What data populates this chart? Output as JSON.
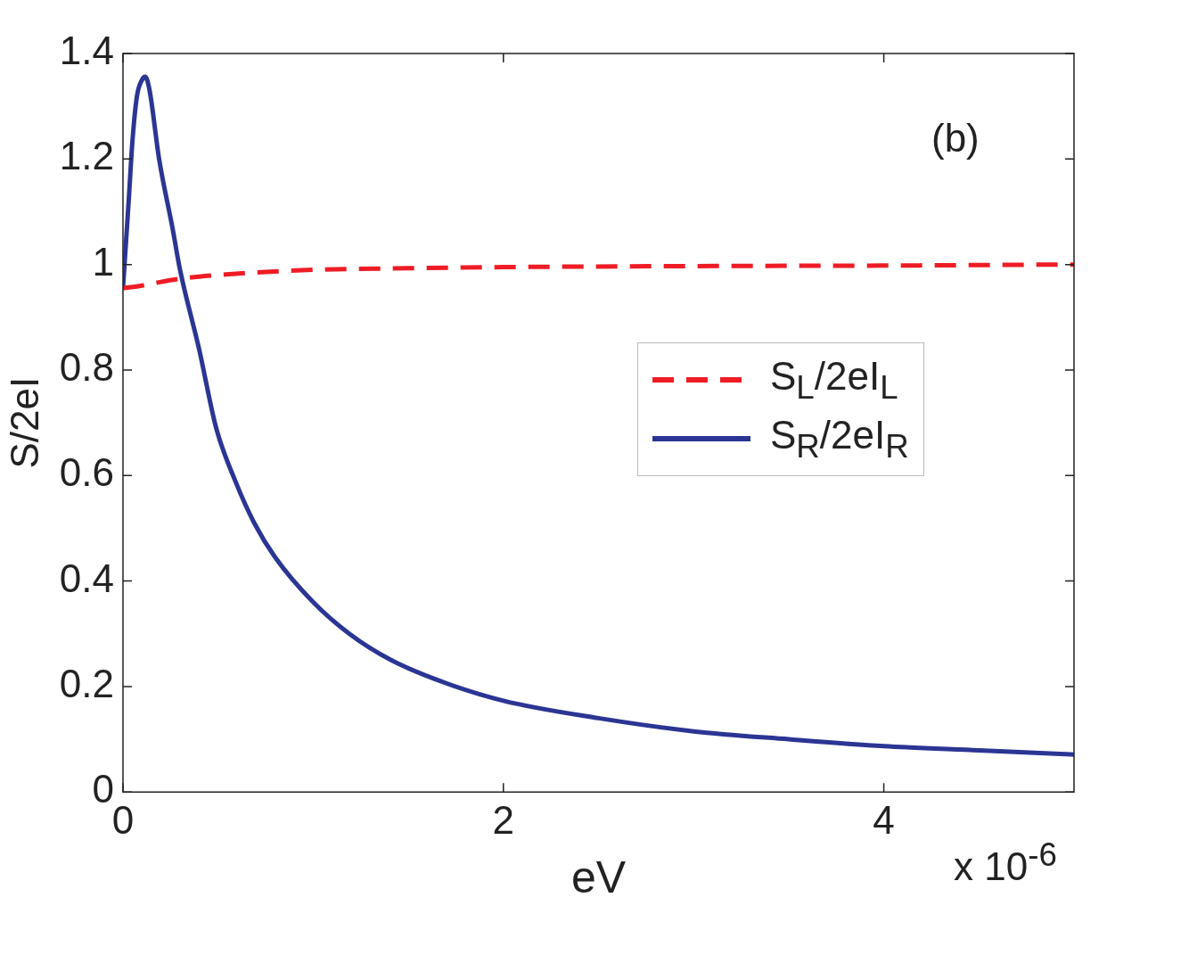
{
  "chart_data": {
    "type": "line",
    "xlabel": "eV",
    "ylabel": "S/2eI",
    "annotations": [
      "(b)",
      "x 10$^{-6}$"
    ],
    "xlim": [
      0,
      5
    ],
    "xticks": [
      0,
      2,
      4
    ],
    "ylim": [
      0,
      1.4
    ],
    "yticks": [
      0,
      0.2,
      0.4,
      0.6,
      0.8,
      1,
      1.2,
      1.4
    ],
    "grid": false,
    "legend": "right",
    "marker": "none",
    "series": [
      {
        "name": "S$_{L}$/2eI$_{L}$",
        "color": "#ee1c25",
        "line_style": "dashed",
        "x": [
          0,
          0.1,
          0.2,
          0.3,
          0.5,
          0.75,
          1,
          1.5,
          2,
          3,
          4,
          5
        ],
        "values": [
          0.955,
          0.96,
          0.967,
          0.973,
          0.98,
          0.986,
          0.99,
          0.993,
          0.995,
          0.997,
          0.998,
          1.0
        ]
      },
      {
        "name": "S$_{R}$/2eI$_{R}$",
        "color": "#2b3593",
        "line_style": "solid",
        "x": [
          0,
          0.03,
          0.05,
          0.073,
          0.1,
          0.117,
          0.14,
          0.19,
          0.26,
          0.3,
          0.4,
          0.49,
          0.59,
          0.69,
          0.8,
          1,
          1.19,
          1.41,
          1.67,
          2,
          2.5,
          3,
          3.5,
          4,
          4.5,
          5
        ],
        "values": [
          0.955,
          1.12,
          1.235,
          1.318,
          1.35,
          1.356,
          1.33,
          1.2,
          1.07,
          0.99,
          0.84,
          0.69,
          0.59,
          0.51,
          0.445,
          0.36,
          0.3,
          0.25,
          0.21,
          0.173,
          0.14,
          0.115,
          0.1,
          0.087,
          0.079,
          0.071
        ]
      }
    ]
  }
}
